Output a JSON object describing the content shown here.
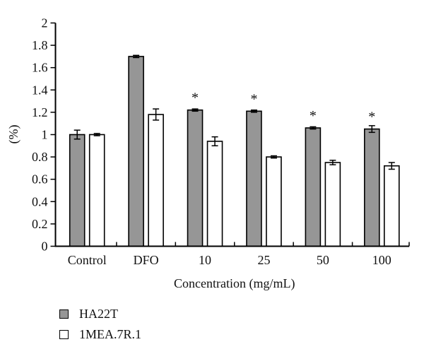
{
  "chart_data": {
    "type": "bar",
    "title": "",
    "xlabel": "Concentration (mg/mL)",
    "ylabel": "(%)",
    "ylim": [
      0,
      2
    ],
    "ytick_step": 0.2,
    "ytick_labels": [
      "0",
      "0.2",
      "0.4",
      "0.6",
      "0.8",
      "1",
      "1.2",
      "1.4",
      "1.6",
      "1.8",
      "2"
    ],
    "categories": [
      "Control",
      "DFO",
      "10",
      "25",
      "50",
      "100"
    ],
    "series": [
      {
        "name": "HA22T",
        "fill": "#969696",
        "values": [
          1.0,
          1.7,
          1.22,
          1.21,
          1.06,
          1.05
        ],
        "errors": [
          0.04,
          0.01,
          0.01,
          0.01,
          0.01,
          0.03
        ],
        "significance": [
          "",
          "",
          "*",
          "*",
          "*",
          "*"
        ]
      },
      {
        "name": "1MEA.7R.1",
        "fill": "#ffffff",
        "values": [
          1.0,
          1.18,
          0.94,
          0.8,
          0.75,
          0.72
        ],
        "errors": [
          0.01,
          0.05,
          0.04,
          0.01,
          0.02,
          0.03
        ],
        "significance": [
          "",
          "",
          "",
          "",
          "",
          ""
        ]
      }
    ],
    "grid": false,
    "legend_position": "bottom-left",
    "axis_color": "#000000"
  }
}
